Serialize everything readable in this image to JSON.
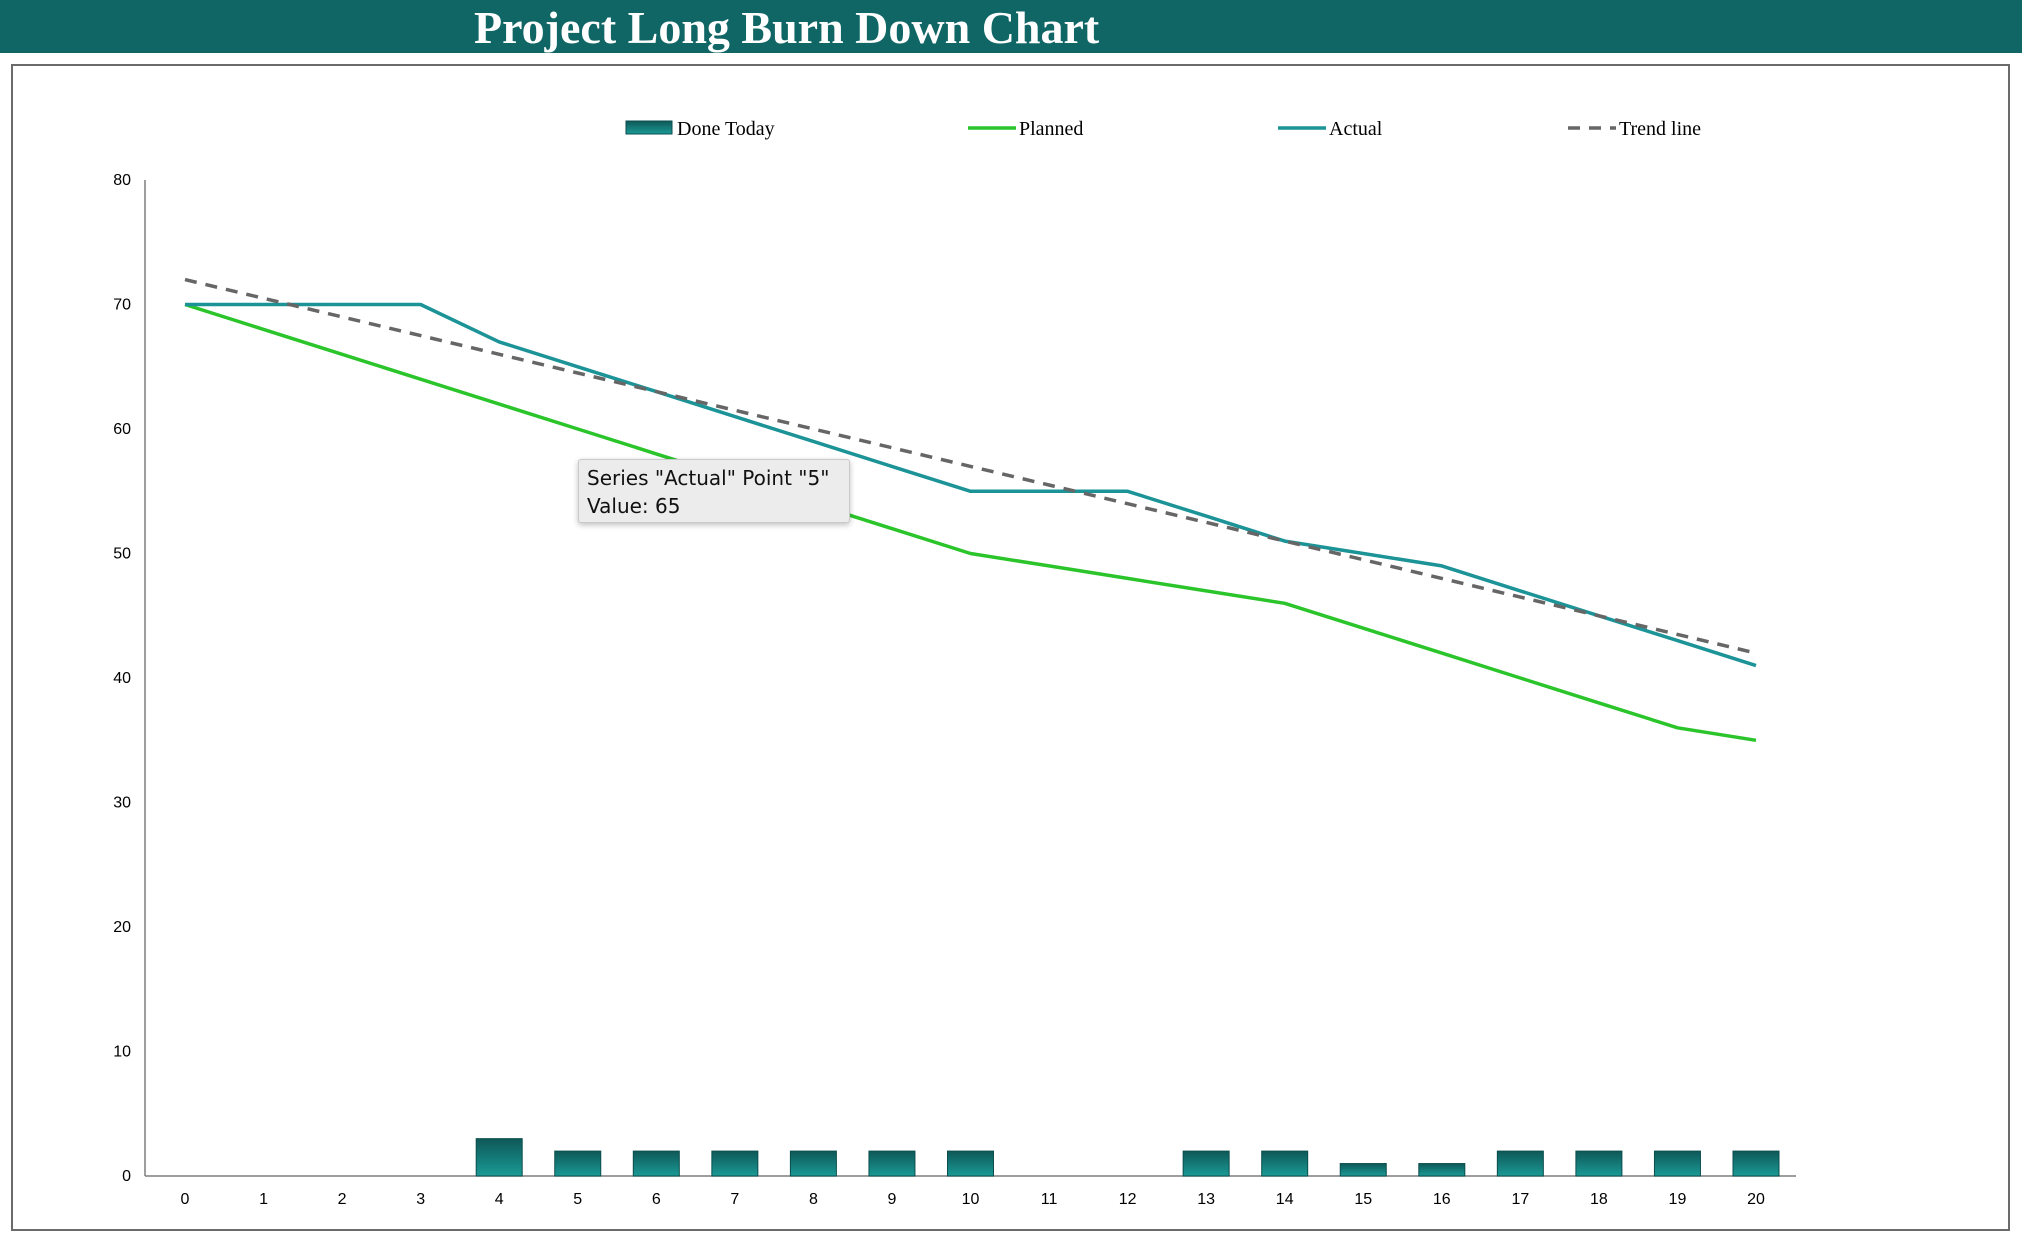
{
  "page": {
    "title": "Project Long Burn Down Chart"
  },
  "colors": {
    "header_bg": "#106665",
    "bar_top": "#0e5857",
    "bar_bottom": "#1a9a96",
    "bar_stroke": "#0b4e4d",
    "planned": "#2bc52b",
    "actual": "#1b9397",
    "trend": "#666666",
    "axis": "#7f7f7f"
  },
  "tooltip": {
    "line1": "Series \"Actual\" Point \"5\"",
    "line2": "Value: 65"
  },
  "chart_data": {
    "type": "bar+line",
    "title": "Project Long Burn Down Chart",
    "xlabel": "",
    "ylabel": "",
    "ylim": [
      0,
      80
    ],
    "yticks": [
      0,
      10,
      20,
      30,
      40,
      50,
      60,
      70,
      80
    ],
    "grid": false,
    "legend_position": "top",
    "categories": [
      "0",
      "1",
      "2",
      "3",
      "4",
      "5",
      "6",
      "7",
      "8",
      "9",
      "10",
      "11",
      "12",
      "13",
      "14",
      "15",
      "16",
      "17",
      "18",
      "19",
      "20"
    ],
    "series": [
      {
        "name": "Done Today",
        "kind": "bar",
        "values": [
          0,
          0,
          0,
          0,
          3,
          2,
          2,
          2,
          2,
          2,
          2,
          0,
          0,
          2,
          2,
          1,
          1,
          2,
          2,
          2,
          2
        ]
      },
      {
        "name": "Planned",
        "kind": "line",
        "values": [
          70,
          68,
          66,
          64,
          62,
          60,
          58,
          56,
          54,
          52,
          50,
          49,
          48,
          47,
          46,
          44,
          42,
          40,
          38,
          36,
          35
        ]
      },
      {
        "name": "Actual",
        "kind": "line",
        "values": [
          70,
          70,
          70,
          70,
          67,
          65,
          63,
          61,
          59,
          57,
          55,
          55,
          55,
          53,
          51,
          50,
          49,
          47,
          45,
          43,
          41
        ]
      },
      {
        "name": "Trend line",
        "kind": "dashed-line",
        "values": [
          72,
          70.5,
          69,
          67.5,
          66,
          64.5,
          63,
          61.5,
          60,
          58.5,
          57,
          55.5,
          54,
          52.5,
          51,
          49.5,
          48,
          46.5,
          45,
          43.5,
          42
        ]
      }
    ]
  }
}
